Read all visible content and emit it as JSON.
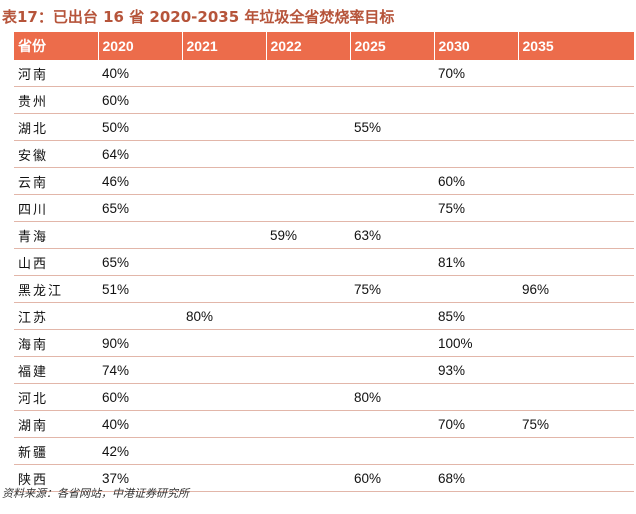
{
  "title": "表17：已出台 16 省 2020-2035 年垃圾全省焚烧率目标",
  "columns": [
    "省份",
    "2020",
    "2021",
    "2022",
    "2025",
    "2030",
    "2035"
  ],
  "rows": [
    [
      "河南",
      "40%",
      "",
      "",
      "",
      "70%",
      ""
    ],
    [
      "贵州",
      "60%",
      "",
      "",
      "",
      "",
      ""
    ],
    [
      "湖北",
      "50%",
      "",
      "",
      "55%",
      "",
      ""
    ],
    [
      "安徽",
      "64%",
      "",
      "",
      "",
      "",
      ""
    ],
    [
      "云南",
      "46%",
      "",
      "",
      "",
      "60%",
      ""
    ],
    [
      "四川",
      "65%",
      "",
      "",
      "",
      "75%",
      ""
    ],
    [
      "青海",
      "",
      "",
      "59%",
      "63%",
      "",
      ""
    ],
    [
      "山西",
      "65%",
      "",
      "",
      "",
      "81%",
      ""
    ],
    [
      "黑龙江",
      "51%",
      "",
      "",
      "75%",
      "",
      "96%"
    ],
    [
      "江苏",
      "",
      "80%",
      "",
      "",
      "85%",
      ""
    ],
    [
      "海南",
      "90%",
      "",
      "",
      "",
      "100%",
      ""
    ],
    [
      "福建",
      "74%",
      "",
      "",
      "",
      "93%",
      ""
    ],
    [
      "河北",
      "60%",
      "",
      "",
      "80%",
      "",
      ""
    ],
    [
      "湖南",
      "40%",
      "",
      "",
      "",
      "70%",
      "75%"
    ],
    [
      "新疆",
      "42%",
      "",
      "",
      "",
      "",
      ""
    ],
    [
      "陕西",
      "37%",
      "",
      "",
      "60%",
      "68%",
      ""
    ]
  ],
  "source": "资料来源：各省网站，中港证券研究所",
  "colors": {
    "title": "#b6543a",
    "header_bg": "#ec6c4b",
    "header_text": "#ffffff",
    "row_rule": "#e2b6a9"
  }
}
